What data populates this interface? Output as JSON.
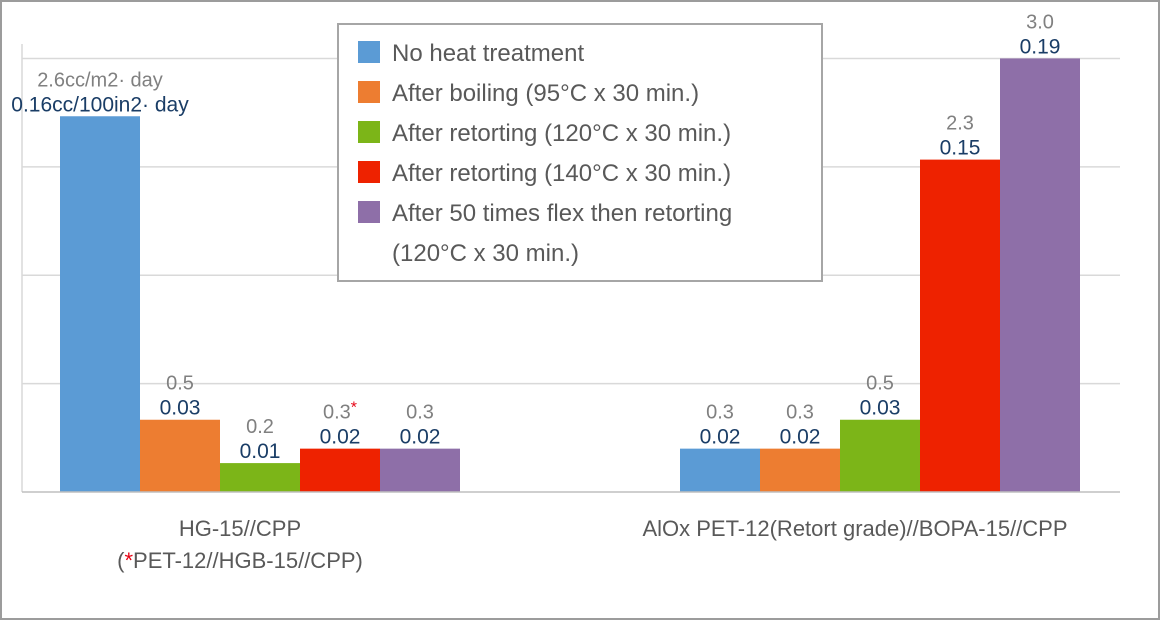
{
  "chart_data": {
    "type": "bar",
    "categories": [
      {
        "line1": "HG-15//CPP",
        "line2_open": "(",
        "line2_star": "*",
        "line2_rest": "PET-12//HGB-15//CPP)"
      },
      {
        "line1": "AlOx PET-12(Retort grade)//BOPA-15//CPP",
        "line2_open": "",
        "line2_star": "",
        "line2_rest": ""
      }
    ],
    "series": [
      {
        "name": "No heat treatment",
        "color": "#5b9bd5",
        "values": [
          2.6,
          0.3
        ],
        "labels_top": [
          "2.6cc/m2· day",
          "0.3"
        ],
        "labels_bottom": [
          "0.16cc/100in2· day",
          "0.02"
        ],
        "marks": [
          "",
          ""
        ]
      },
      {
        "name": "After boiling  (95°C x 30 min.)",
        "color": "#ed7d31",
        "values": [
          0.5,
          0.3
        ],
        "labels_top": [
          "0.5",
          "0.3"
        ],
        "labels_bottom": [
          "0.03",
          "0.02"
        ],
        "marks": [
          "",
          ""
        ]
      },
      {
        "name": "After retorting (120°C x 30 min.)",
        "color": "#7cb518",
        "values": [
          0.2,
          0.5
        ],
        "labels_top": [
          "0.2",
          "0.5"
        ],
        "labels_bottom": [
          "0.01",
          "0.03"
        ],
        "marks": [
          "",
          ""
        ]
      },
      {
        "name": "After retorting (140°C x 30 min.)",
        "color": "#ee2200",
        "values": [
          0.3,
          2.3
        ],
        "labels_top": [
          "0.3",
          "2.3"
        ],
        "labels_bottom": [
          "0.02",
          "0.15"
        ],
        "marks": [
          "*",
          ""
        ]
      },
      {
        "name": "After 50 times flex then retorting",
        "name_line2": "(120°C x 30 min.)",
        "color": "#8e6fa8",
        "values": [
          0.3,
          3.0
        ],
        "labels_top": [
          "0.3",
          "3.0"
        ],
        "labels_bottom": [
          "0.02",
          "0.19"
        ],
        "marks": [
          "",
          ""
        ]
      }
    ],
    "ylim": [
      0,
      3.1
    ],
    "grid": true,
    "legend_position": "top-center",
    "footnote_mark_color": "#e60012"
  }
}
